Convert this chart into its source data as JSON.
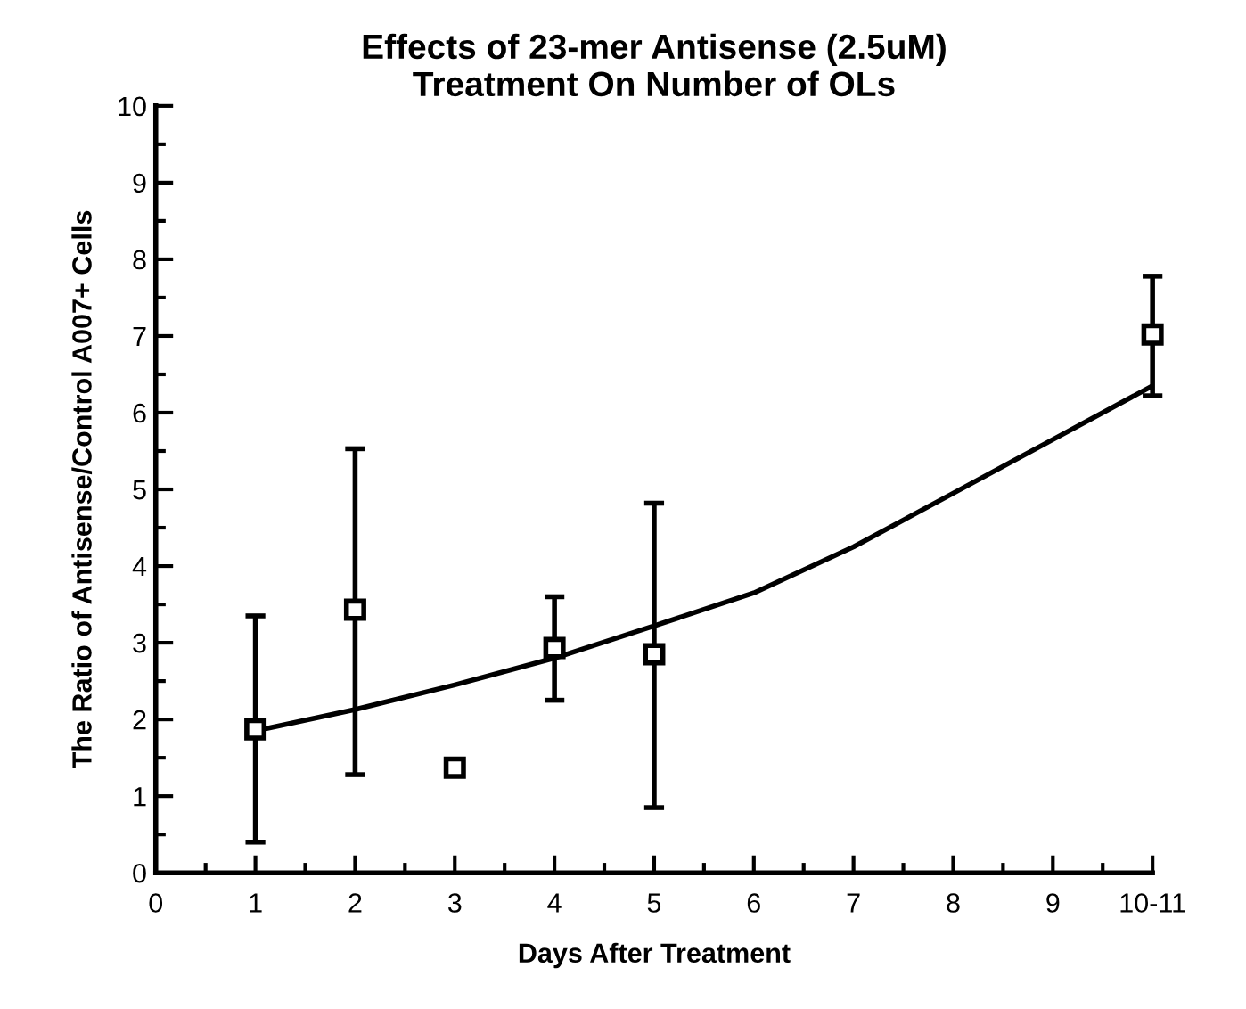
{
  "chart_data": {
    "type": "scatter",
    "title": "Effects of 23-mer Antisense (2.5uM)\nTreatment On Number of OLs",
    "xlabel": "Days After Treatment",
    "ylabel": "The Ratio of Antisense/Control A007+ Cells",
    "xlim": [
      0,
      10
    ],
    "xticks": [
      0,
      1,
      2,
      3,
      4,
      5,
      6,
      7,
      8,
      9,
      {
        "value": 10,
        "label": "10-11"
      }
    ],
    "ylim": [
      0,
      10
    ],
    "yticks": [
      0,
      1,
      2,
      3,
      4,
      5,
      6,
      7,
      8,
      9,
      10
    ],
    "grid": false,
    "legend": false,
    "series": [
      {
        "color": "#000000",
        "marker": "square",
        "x": [
          1,
          2,
          3,
          4,
          5,
          10
        ],
        "values": [
          1.87,
          3.43,
          1.37,
          2.93,
          2.85,
          7.02
        ],
        "errors": [
          [
            0.4,
            3.35
          ],
          [
            1.28,
            5.53
          ],
          null,
          [
            2.25,
            3.6
          ],
          [
            0.85,
            4.82
          ],
          [
            6.22,
            7.78
          ]
        ]
      },
      {
        "type": "line",
        "color": "#000000",
        "marker": "none",
        "line_style": "solid",
        "x": [
          1,
          2,
          3,
          4,
          5,
          6,
          7,
          8,
          9,
          10
        ],
        "values": [
          1.85,
          2.13,
          2.45,
          2.8,
          3.22,
          3.65,
          4.25,
          4.95,
          5.65,
          6.35
        ]
      }
    ]
  }
}
